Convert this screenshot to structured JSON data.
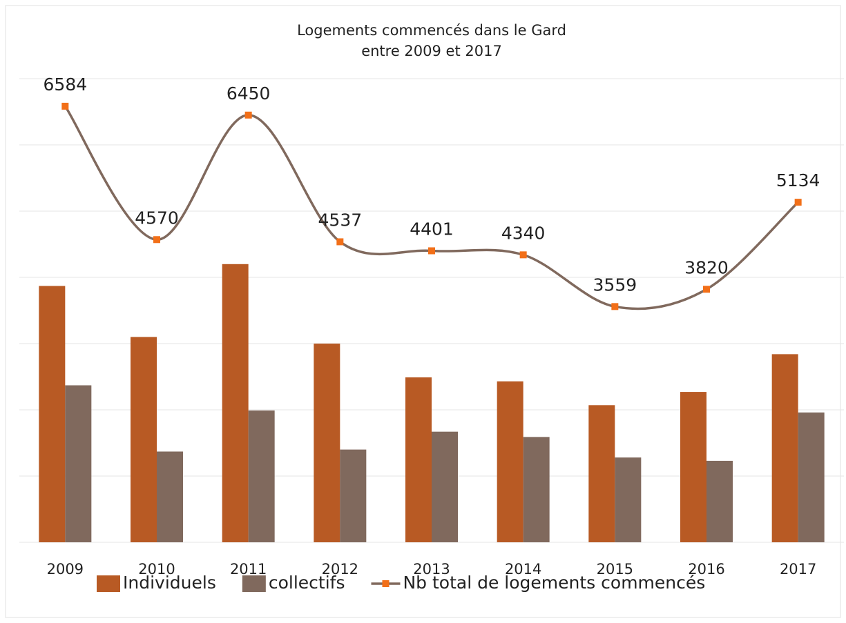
{
  "chart_data": {
    "type": "bar-line",
    "title": "Logements commencés dans le Gard",
    "subtitle": "entre 2009 et 2017",
    "categories": [
      "2009",
      "2010",
      "2011",
      "2012",
      "2013",
      "2014",
      "2015",
      "2016",
      "2017"
    ],
    "series": [
      {
        "name": "Individuels",
        "color": "#b85a24",
        "type": "bar",
        "values": [
          3870,
          3100,
          4200,
          3000,
          2490,
          2430,
          2070,
          2270,
          2840
        ]
      },
      {
        "name": "collectifs",
        "color": "#80695d",
        "type": "bar",
        "values": [
          2370,
          1370,
          1990,
          1400,
          1670,
          1590,
          1280,
          1230,
          1960
        ]
      },
      {
        "name": "Nb total de logements commencés",
        "color": "#80695d",
        "marker_color": "#f26f18",
        "type": "line",
        "values": [
          6584,
          4570,
          6450,
          4537,
          4401,
          4340,
          3559,
          3820,
          5134
        ]
      }
    ],
    "ylim": [
      0,
      7000
    ],
    "yticks": [
      0,
      1000,
      2000,
      3000,
      4000,
      5000,
      6000,
      7000
    ],
    "grid": true
  }
}
